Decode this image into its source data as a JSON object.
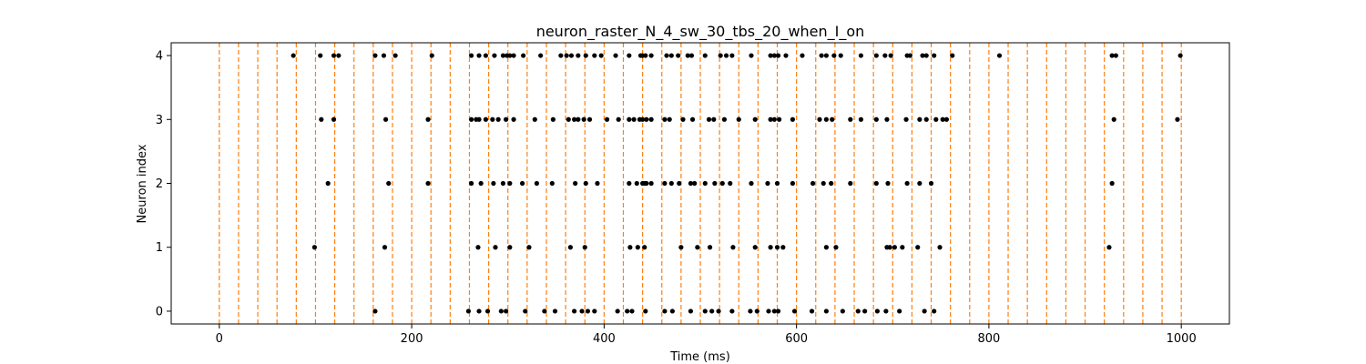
{
  "chart_data": {
    "type": "scatter",
    "title": "neuron_raster_N_4_sw_30_tbs_20_when_I_on",
    "xlabel": "Time (ms)",
    "ylabel": "Neuron index",
    "xlim": [
      -50,
      1050
    ],
    "ylim": [
      -0.2,
      4.2
    ],
    "x_ticks": [
      0,
      200,
      400,
      600,
      800,
      1000
    ],
    "y_ticks": [
      0,
      1,
      2,
      3,
      4
    ],
    "grid": false,
    "legend": "none",
    "marker_color": "#000000",
    "vline_color": "#ff7f0e",
    "vlines": [
      0,
      20,
      40,
      60,
      80,
      100,
      120,
      140,
      160,
      180,
      200,
      220,
      240,
      260,
      280,
      300,
      320,
      340,
      360,
      380,
      400,
      420,
      440,
      460,
      480,
      500,
      520,
      540,
      560,
      580,
      600,
      620,
      640,
      660,
      680,
      700,
      720,
      740,
      760,
      780,
      800,
      820,
      840,
      860,
      880,
      900,
      920,
      940,
      960,
      980,
      1000
    ],
    "series": [
      {
        "neuron": 4,
        "spikes": [
          77,
          105,
          119,
          124,
          162,
          171,
          183,
          221,
          262,
          270,
          277,
          286,
          295,
          299,
          302,
          306,
          316,
          334,
          355,
          361,
          366,
          373,
          381,
          390,
          397,
          412,
          426,
          438,
          440,
          443,
          449,
          465,
          470,
          477,
          487,
          491,
          505,
          521,
          527,
          533,
          553,
          573,
          577,
          581,
          589,
          606,
          626,
          631,
          639,
          646,
          667,
          683,
          692,
          698,
          715,
          718,
          731,
          735,
          743,
          762,
          811,
          928,
          932,
          999
        ]
      },
      {
        "neuron": 3,
        "spikes": [
          106,
          119,
          173,
          217,
          262,
          267,
          270,
          277,
          284,
          290,
          298,
          306,
          328,
          347,
          363,
          369,
          373,
          379,
          385,
          403,
          415,
          426,
          431,
          437,
          440,
          444,
          449,
          463,
          468,
          482,
          492,
          509,
          514,
          525,
          540,
          557,
          573,
          577,
          582,
          596,
          624,
          631,
          637,
          656,
          667,
          683,
          694,
          714,
          728,
          735,
          745,
          752,
          756,
          930,
          996
        ]
      },
      {
        "neuron": 2,
        "spikes": [
          113,
          176,
          217,
          262,
          272,
          285,
          295,
          302,
          315,
          330,
          346,
          370,
          381,
          393,
          426,
          434,
          440,
          442,
          444,
          449,
          463,
          470,
          478,
          490,
          494,
          505,
          515,
          523,
          531,
          553,
          570,
          580,
          596,
          617,
          628,
          636,
          656,
          683,
          695,
          715,
          728,
          740,
          928
        ]
      },
      {
        "neuron": 1,
        "spikes": [
          99,
          172,
          269,
          287,
          302,
          322,
          365,
          380,
          427,
          435,
          442,
          480,
          497,
          510,
          534,
          557,
          573,
          580,
          586,
          631,
          641,
          694,
          697,
          702,
          710,
          726,
          749,
          925
        ]
      },
      {
        "neuron": 0,
        "spikes": [
          162,
          259,
          270,
          279,
          293,
          298,
          318,
          338,
          349,
          369,
          377,
          383,
          390,
          414,
          424,
          429,
          443,
          463,
          471,
          490,
          505,
          512,
          519,
          533,
          552,
          559,
          571,
          577,
          581,
          598,
          616,
          631,
          648,
          664,
          671,
          684,
          693,
          707,
          733,
          743
        ]
      }
    ]
  }
}
